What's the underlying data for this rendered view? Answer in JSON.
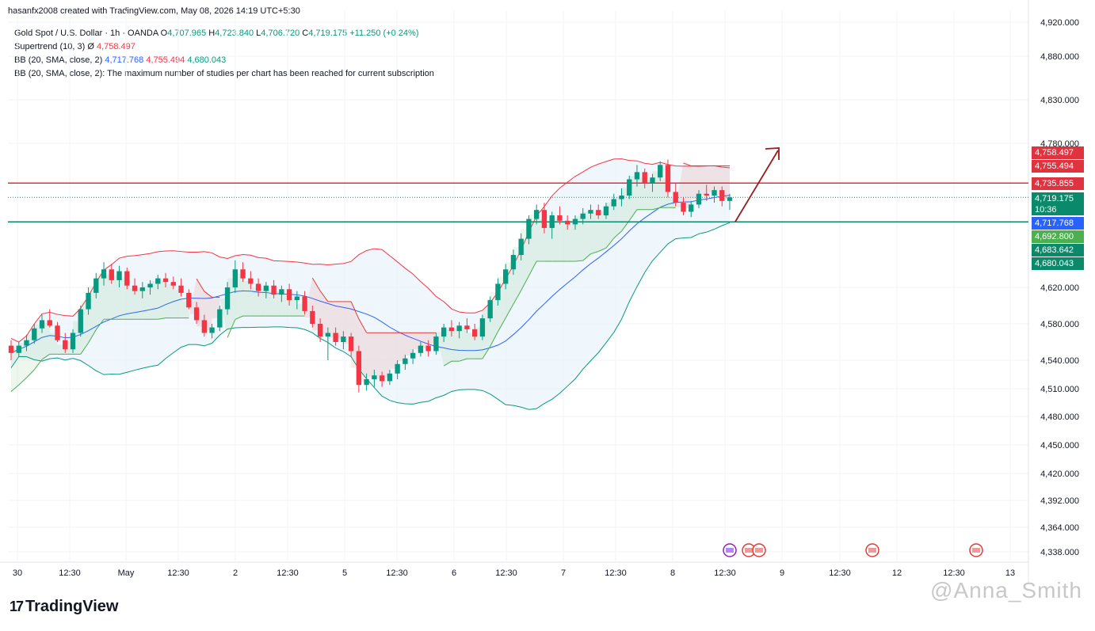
{
  "header": {
    "created_by": "hasanfx2008 created with TradingView.com, May 08, 2026 14:19 UTC+5:30",
    "symbol": "Gold Spot / U.S. Dollar · 1h · OANDA",
    "open_label": "O",
    "open": "4,707.965",
    "high_label": "H",
    "high": "4,723.840",
    "low_label": "L",
    "low": "4,706.720",
    "close_label": "C",
    "close": "4,719.175",
    "change": "+11.250 (+0.24%)",
    "supertrend_name": "Supertrend (10, 3)",
    "supertrend_symbol": "Ø",
    "supertrend_value": "4,758.497",
    "bb_name": "BB (20, SMA, close, 2)",
    "bb_basis": "4,717.768",
    "bb_upper": "4,755.494",
    "bb_lower": "4,680.043",
    "bb2_message": "BB (20, SMA, close, 2): The maximum number of studies per chart has been reached for current subscription"
  },
  "price_labels": {
    "supertrend": "4,758.497",
    "bb_upper": "4,755.494",
    "resistance": "4,735.855",
    "last_price": "4,719.175",
    "countdown": "10:36",
    "bb_basis": "4,717.768",
    "support": "4,692.800",
    "level_683": "4,683.642",
    "bb_lower": "4,680.043"
  },
  "colors": {
    "up": "#089981",
    "down": "#f23645",
    "resistance_line": "#e0303c",
    "support_line": "#0c8a6e",
    "bb_basis": "#2962ff",
    "bb_band": "#e8f2fb",
    "supertrend_up": "#4caf50",
    "supertrend_down": "#e53935",
    "arrow": "#9b1c1c",
    "label_red": "#e03340",
    "label_green": "#0a8a6b",
    "label_blue": "#2962ff",
    "label_lime": "#4caf50"
  },
  "footer": {
    "brand": "TradingView",
    "watermark": "@Anna_Smith"
  },
  "chart_data": {
    "type": "candlestick",
    "symbol": "XAUUSD",
    "timeframe": "1h",
    "y_ticks": [
      "4,920.000",
      "4,880.000",
      "4,830.000",
      "4,780.000",
      "4,620.000",
      "4,580.000",
      "4,540.000",
      "4,510.000",
      "4,480.000",
      "4,450.000",
      "4,420.000",
      "4,392.000",
      "4,364.000",
      "4,338.000"
    ],
    "x_ticks": [
      "30",
      "12:30",
      "May",
      "12:30",
      "2",
      "12:30",
      "5",
      "12:30",
      "6",
      "12:30",
      "7",
      "12:30",
      "8",
      "12:30",
      "9",
      "12:30",
      "12",
      "12:30",
      "13"
    ],
    "horizontal_levels": {
      "resistance": 4735.855,
      "support": 4692.8
    },
    "ohlc": [
      [
        4556,
        4562,
        4540,
        4548
      ],
      [
        4548,
        4560,
        4544,
        4556
      ],
      [
        4556,
        4568,
        4550,
        4562
      ],
      [
        4562,
        4580,
        4558,
        4575
      ],
      [
        4575,
        4590,
        4570,
        4584
      ],
      [
        4584,
        4596,
        4576,
        4578
      ],
      [
        4578,
        4582,
        4560,
        4562
      ],
      [
        4562,
        4570,
        4548,
        4552
      ],
      [
        4552,
        4574,
        4548,
        4570
      ],
      [
        4570,
        4600,
        4566,
        4596
      ],
      [
        4596,
        4620,
        4590,
        4614
      ],
      [
        4614,
        4636,
        4608,
        4630
      ],
      [
        4630,
        4648,
        4622,
        4640
      ],
      [
        4640,
        4646,
        4624,
        4628
      ],
      [
        4628,
        4644,
        4620,
        4638
      ],
      [
        4638,
        4642,
        4618,
        4622
      ],
      [
        4622,
        4630,
        4612,
        4616
      ],
      [
        4616,
        4626,
        4608,
        4620
      ],
      [
        4620,
        4628,
        4612,
        4624
      ],
      [
        4624,
        4634,
        4618,
        4630
      ],
      [
        4630,
        4636,
        4620,
        4626
      ],
      [
        4626,
        4632,
        4618,
        4622
      ],
      [
        4622,
        4630,
        4610,
        4614
      ],
      [
        4614,
        4618,
        4596,
        4598
      ],
      [
        4598,
        4604,
        4580,
        4584
      ],
      [
        4584,
        4590,
        4566,
        4570
      ],
      [
        4570,
        4580,
        4564,
        4576
      ],
      [
        4576,
        4600,
        4572,
        4596
      ],
      [
        4596,
        4626,
        4590,
        4620
      ],
      [
        4620,
        4650,
        4614,
        4640
      ],
      [
        4640,
        4648,
        4626,
        4630
      ],
      [
        4630,
        4638,
        4618,
        4624
      ],
      [
        4624,
        4630,
        4610,
        4616
      ],
      [
        4616,
        4626,
        4608,
        4622
      ],
      [
        4622,
        4628,
        4608,
        4612
      ],
      [
        4612,
        4622,
        4604,
        4618
      ],
      [
        4618,
        4624,
        4600,
        4606
      ],
      [
        4606,
        4616,
        4596,
        4610
      ],
      [
        4610,
        4616,
        4590,
        4594
      ],
      [
        4594,
        4600,
        4576,
        4580
      ],
      [
        4580,
        4586,
        4560,
        4566
      ],
      [
        4566,
        4576,
        4540,
        4570
      ],
      [
        4570,
        4576,
        4556,
        4560
      ],
      [
        4560,
        4572,
        4552,
        4566
      ],
      [
        4566,
        4570,
        4544,
        4550
      ],
      [
        4550,
        4556,
        4506,
        4514
      ],
      [
        4514,
        4526,
        4508,
        4520
      ],
      [
        4520,
        4530,
        4512,
        4524
      ],
      [
        4524,
        4528,
        4512,
        4518
      ],
      [
        4518,
        4530,
        4514,
        4526
      ],
      [
        4526,
        4540,
        4520,
        4536
      ],
      [
        4536,
        4546,
        4530,
        4542
      ],
      [
        4542,
        4552,
        4536,
        4548
      ],
      [
        4548,
        4560,
        4544,
        4556
      ],
      [
        4556,
        4562,
        4544,
        4550
      ],
      [
        4550,
        4570,
        4546,
        4566
      ],
      [
        4566,
        4580,
        4560,
        4576
      ],
      [
        4576,
        4584,
        4566,
        4572
      ],
      [
        4572,
        4582,
        4564,
        4578
      ],
      [
        4578,
        4586,
        4570,
        4574
      ],
      [
        4574,
        4580,
        4562,
        4566
      ],
      [
        4566,
        4590,
        4562,
        4586
      ],
      [
        4586,
        4610,
        4582,
        4606
      ],
      [
        4606,
        4630,
        4600,
        4624
      ],
      [
        4624,
        4646,
        4618,
        4640
      ],
      [
        4640,
        4662,
        4634,
        4656
      ],
      [
        4656,
        4680,
        4650,
        4674
      ],
      [
        4674,
        4700,
        4668,
        4696
      ],
      [
        4696,
        4712,
        4690,
        4706
      ],
      [
        4706,
        4714,
        4680,
        4686
      ],
      [
        4686,
        4704,
        4674,
        4700
      ],
      [
        4700,
        4710,
        4690,
        4694
      ],
      [
        4694,
        4700,
        4684,
        4690
      ],
      [
        4690,
        4700,
        4684,
        4696
      ],
      [
        4696,
        4708,
        4690,
        4702
      ],
      [
        4702,
        4712,
        4696,
        4706
      ],
      [
        4706,
        4712,
        4696,
        4700
      ],
      [
        4700,
        4714,
        4696,
        4710
      ],
      [
        4710,
        4724,
        4706,
        4718
      ],
      [
        4718,
        4730,
        4710,
        4722
      ],
      [
        4722,
        4744,
        4718,
        4740
      ],
      [
        4740,
        4756,
        4732,
        4748
      ],
      [
        4748,
        4752,
        4730,
        4736
      ],
      [
        4736,
        4746,
        4726,
        4742
      ],
      [
        4742,
        4760,
        4738,
        4756
      ],
      [
        4756,
        4762,
        4720,
        4726
      ],
      [
        4726,
        4736,
        4710,
        4714
      ],
      [
        4714,
        4720,
        4700,
        4704
      ],
      [
        4704,
        4716,
        4698,
        4712
      ],
      [
        4712,
        4728,
        4708,
        4724
      ],
      [
        4724,
        4734,
        4716,
        4722
      ],
      [
        4722,
        4732,
        4714,
        4728
      ],
      [
        4728,
        4732,
        4710,
        4716
      ],
      [
        4716,
        4724,
        4706,
        4720
      ]
    ]
  }
}
